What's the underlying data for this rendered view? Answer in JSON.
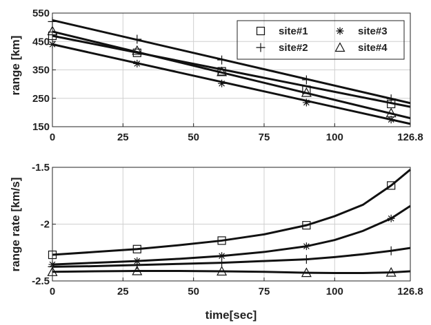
{
  "chart_data": [
    {
      "type": "line",
      "title": "",
      "xlabel": "",
      "ylabel": "range [km]",
      "xlim": [
        0,
        126.8
      ],
      "ylim": [
        150,
        550
      ],
      "x_ticks": [
        0,
        25,
        50,
        75,
        100,
        126.8
      ],
      "y_ticks": [
        150,
        250,
        350,
        450,
        550
      ],
      "grid": true,
      "legend_position": "top-right",
      "marker_x": [
        0,
        30,
        60,
        90,
        120
      ],
      "series": [
        {
          "name": "site#1",
          "marker": "square",
          "x": [
            0,
            126.8
          ],
          "y": [
            470,
            220
          ],
          "marker_y": [
            470,
            410,
            345,
            280,
            230
          ]
        },
        {
          "name": "site#2",
          "marker": "plus",
          "x": [
            0,
            126.8
          ],
          "y": [
            525,
            233
          ],
          "marker_y": [
            520,
            458,
            385,
            315,
            248
          ]
        },
        {
          "name": "site#3",
          "marker": "asterisk",
          "x": [
            0,
            126.8
          ],
          "y": [
            440,
            160
          ],
          "marker_y": [
            440,
            372,
            302,
            235,
            175
          ]
        },
        {
          "name": "site#4",
          "marker": "triangle",
          "x": [
            0,
            126.8
          ],
          "y": [
            485,
            180
          ],
          "marker_y": [
            487,
            418,
            343,
            270,
            198
          ]
        }
      ]
    },
    {
      "type": "line",
      "title": "",
      "xlabel": "time[sec]",
      "ylabel": "range rate [km/s]",
      "xlim": [
        0,
        126.8
      ],
      "ylim": [
        -2.5,
        -1.5
      ],
      "x_ticks": [
        0,
        25,
        50,
        75,
        100,
        126.8
      ],
      "y_ticks": [
        -2.5,
        -2,
        -1.5
      ],
      "grid": true,
      "marker_x": [
        0,
        30,
        60,
        90,
        120
      ],
      "series": [
        {
          "name": "site#1",
          "marker": "square",
          "x": [
            0,
            15,
            30,
            45,
            60,
            75,
            90,
            100,
            110,
            120,
            126.8
          ],
          "y": [
            -2.27,
            -2.245,
            -2.22,
            -2.185,
            -2.145,
            -2.09,
            -2.01,
            -1.93,
            -1.83,
            -1.66,
            -1.52
          ],
          "marker_y": [
            -2.27,
            -2.22,
            -2.145,
            -2.01,
            -1.66
          ]
        },
        {
          "name": "site#3",
          "marker": "asterisk",
          "x": [
            0,
            15,
            30,
            45,
            60,
            75,
            90,
            100,
            110,
            120,
            126.8
          ],
          "y": [
            -2.355,
            -2.34,
            -2.325,
            -2.305,
            -2.28,
            -2.245,
            -2.195,
            -2.14,
            -2.06,
            -1.95,
            -1.84
          ],
          "marker_y": [
            -2.355,
            -2.325,
            -2.28,
            -2.195,
            -1.95
          ]
        },
        {
          "name": "site#2",
          "marker": "plus",
          "x": [
            0,
            15,
            30,
            45,
            60,
            75,
            90,
            100,
            110,
            120,
            126.8
          ],
          "y": [
            -2.375,
            -2.37,
            -2.36,
            -2.35,
            -2.34,
            -2.325,
            -2.31,
            -2.29,
            -2.265,
            -2.235,
            -2.21
          ],
          "marker_y": [
            -2.375,
            -2.36,
            -2.34,
            -2.31,
            -2.235
          ]
        },
        {
          "name": "site#4",
          "marker": "triangle",
          "x": [
            0,
            15,
            30,
            45,
            60,
            75,
            90,
            100,
            110,
            120,
            126.8
          ],
          "y": [
            -2.42,
            -2.415,
            -2.412,
            -2.412,
            -2.415,
            -2.42,
            -2.428,
            -2.43,
            -2.43,
            -2.425,
            -2.415
          ],
          "marker_y": [
            -2.42,
            -2.412,
            -2.415,
            -2.428,
            -2.425
          ]
        }
      ]
    }
  ]
}
